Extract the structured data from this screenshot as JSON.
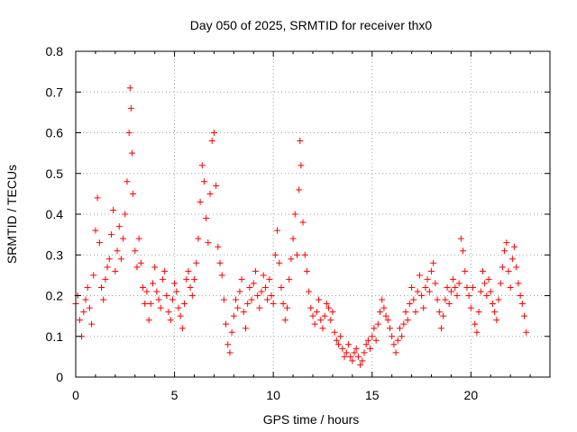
{
  "chart_data": {
    "type": "scatter",
    "title": "Day 050 of 2025, SRMTID for receiver thx0",
    "xlabel": "GPS time / hours",
    "ylabel": "SRMTID / TECUs",
    "xlim": [
      0,
      24
    ],
    "ylim": [
      0,
      0.8
    ],
    "xticks": [
      0,
      5,
      10,
      15,
      20
    ],
    "xtick_labels": [
      "0",
      "5",
      "10",
      "15",
      "20"
    ],
    "yticks": [
      0,
      0.1,
      0.2,
      0.3,
      0.4,
      0.5,
      0.6,
      0.7,
      0.8
    ],
    "ytick_labels": [
      "0",
      "0.1",
      "0.2",
      "0.3",
      "0.4",
      "0.5",
      "0.6",
      "0.7",
      "0.8"
    ],
    "grid": true,
    "marker": "plus",
    "marker_color": "#ff0000",
    "series": [
      {
        "name": "thx0",
        "points": [
          [
            0.0,
            0.18
          ],
          [
            0.1,
            0.2
          ],
          [
            0.2,
            0.14
          ],
          [
            0.3,
            0.1
          ],
          [
            0.4,
            0.16
          ],
          [
            0.5,
            0.19
          ],
          [
            0.6,
            0.22
          ],
          [
            0.7,
            0.17
          ],
          [
            0.8,
            0.13
          ],
          [
            0.9,
            0.25
          ],
          [
            1.0,
            0.36
          ],
          [
            1.1,
            0.44
          ],
          [
            1.2,
            0.33
          ],
          [
            1.3,
            0.22
          ],
          [
            1.4,
            0.19
          ],
          [
            1.5,
            0.24
          ],
          [
            1.6,
            0.27
          ],
          [
            1.7,
            0.29
          ],
          [
            1.8,
            0.35
          ],
          [
            1.9,
            0.41
          ],
          [
            2.0,
            0.26
          ],
          [
            2.1,
            0.31
          ],
          [
            2.2,
            0.37
          ],
          [
            2.3,
            0.29
          ],
          [
            2.4,
            0.34
          ],
          [
            2.5,
            0.4
          ],
          [
            2.6,
            0.48
          ],
          [
            2.7,
            0.6
          ],
          [
            2.75,
            0.71
          ],
          [
            2.8,
            0.66
          ],
          [
            2.85,
            0.55
          ],
          [
            2.9,
            0.45
          ],
          [
            3.0,
            0.31
          ],
          [
            3.1,
            0.27
          ],
          [
            3.2,
            0.34
          ],
          [
            3.3,
            0.28
          ],
          [
            3.4,
            0.22
          ],
          [
            3.5,
            0.18
          ],
          [
            3.6,
            0.21
          ],
          [
            3.7,
            0.14
          ],
          [
            3.8,
            0.18
          ],
          [
            3.9,
            0.23
          ],
          [
            4.0,
            0.27
          ],
          [
            4.1,
            0.21
          ],
          [
            4.2,
            0.19
          ],
          [
            4.3,
            0.17
          ],
          [
            4.4,
            0.24
          ],
          [
            4.5,
            0.26
          ],
          [
            4.6,
            0.2
          ],
          [
            4.7,
            0.16
          ],
          [
            4.8,
            0.14
          ],
          [
            4.9,
            0.19
          ],
          [
            5.0,
            0.23
          ],
          [
            5.1,
            0.21
          ],
          [
            5.2,
            0.17
          ],
          [
            5.3,
            0.15
          ],
          [
            5.4,
            0.12
          ],
          [
            5.5,
            0.18
          ],
          [
            5.6,
            0.24
          ],
          [
            5.7,
            0.26
          ],
          [
            5.8,
            0.22
          ],
          [
            5.9,
            0.2
          ],
          [
            6.0,
            0.24
          ],
          [
            6.1,
            0.28
          ],
          [
            6.2,
            0.34
          ],
          [
            6.3,
            0.43
          ],
          [
            6.4,
            0.52
          ],
          [
            6.5,
            0.48
          ],
          [
            6.6,
            0.39
          ],
          [
            6.7,
            0.33
          ],
          [
            6.8,
            0.45
          ],
          [
            6.9,
            0.58
          ],
          [
            7.0,
            0.6
          ],
          [
            7.1,
            0.47
          ],
          [
            7.2,
            0.32
          ],
          [
            7.3,
            0.28
          ],
          [
            7.4,
            0.25
          ],
          [
            7.5,
            0.19
          ],
          [
            7.6,
            0.13
          ],
          [
            7.7,
            0.08
          ],
          [
            7.8,
            0.06
          ],
          [
            7.9,
            0.11
          ],
          [
            8.0,
            0.15
          ],
          [
            8.1,
            0.19
          ],
          [
            8.2,
            0.17
          ],
          [
            8.3,
            0.21
          ],
          [
            8.4,
            0.24
          ],
          [
            8.5,
            0.16
          ],
          [
            8.6,
            0.12
          ],
          [
            8.7,
            0.18
          ],
          [
            8.8,
            0.22
          ],
          [
            8.9,
            0.19
          ],
          [
            9.0,
            0.23
          ],
          [
            9.1,
            0.26
          ],
          [
            9.2,
            0.2
          ],
          [
            9.3,
            0.17
          ],
          [
            9.4,
            0.21
          ],
          [
            9.5,
            0.25
          ],
          [
            9.6,
            0.22
          ],
          [
            9.7,
            0.19
          ],
          [
            9.8,
            0.24
          ],
          [
            9.9,
            0.2
          ],
          [
            10.0,
            0.18
          ],
          [
            10.1,
            0.3
          ],
          [
            10.2,
            0.36
          ],
          [
            10.3,
            0.28
          ],
          [
            10.4,
            0.22
          ],
          [
            10.5,
            0.18
          ],
          [
            10.6,
            0.14
          ],
          [
            10.7,
            0.17
          ],
          [
            10.8,
            0.24
          ],
          [
            10.9,
            0.29
          ],
          [
            11.0,
            0.34
          ],
          [
            11.1,
            0.4
          ],
          [
            11.2,
            0.3
          ],
          [
            11.3,
            0.46
          ],
          [
            11.35,
            0.58
          ],
          [
            11.4,
            0.52
          ],
          [
            11.5,
            0.38
          ],
          [
            11.6,
            0.3
          ],
          [
            11.7,
            0.26
          ],
          [
            11.8,
            0.21
          ],
          [
            11.9,
            0.17
          ],
          [
            12.0,
            0.15
          ],
          [
            12.1,
            0.13
          ],
          [
            12.2,
            0.16
          ],
          [
            12.3,
            0.19
          ],
          [
            12.4,
            0.14
          ],
          [
            12.5,
            0.12
          ],
          [
            12.6,
            0.15
          ],
          [
            12.7,
            0.18
          ],
          [
            12.8,
            0.17
          ],
          [
            12.9,
            0.14
          ],
          [
            13.0,
            0.16
          ],
          [
            13.1,
            0.11
          ],
          [
            13.2,
            0.09
          ],
          [
            13.3,
            0.08
          ],
          [
            13.4,
            0.1
          ],
          [
            13.5,
            0.07
          ],
          [
            13.6,
            0.05
          ],
          [
            13.7,
            0.06
          ],
          [
            13.8,
            0.08
          ],
          [
            13.9,
            0.05
          ],
          [
            14.0,
            0.04
          ],
          [
            14.1,
            0.06
          ],
          [
            14.2,
            0.07
          ],
          [
            14.3,
            0.05
          ],
          [
            14.4,
            0.03
          ],
          [
            14.5,
            0.04
          ],
          [
            14.6,
            0.06
          ],
          [
            14.7,
            0.08
          ],
          [
            14.8,
            0.09
          ],
          [
            14.9,
            0.07
          ],
          [
            15.0,
            0.1
          ],
          [
            15.1,
            0.12
          ],
          [
            15.2,
            0.09
          ],
          [
            15.3,
            0.13
          ],
          [
            15.4,
            0.16
          ],
          [
            15.5,
            0.19
          ],
          [
            15.6,
            0.17
          ],
          [
            15.7,
            0.15
          ],
          [
            15.8,
            0.14
          ],
          [
            15.9,
            0.12
          ],
          [
            16.0,
            0.1
          ],
          [
            16.1,
            0.08
          ],
          [
            16.2,
            0.06
          ],
          [
            16.3,
            0.09
          ],
          [
            16.4,
            0.12
          ],
          [
            16.5,
            0.1
          ],
          [
            16.6,
            0.13
          ],
          [
            16.7,
            0.16
          ],
          [
            16.8,
            0.14
          ],
          [
            16.9,
            0.18
          ],
          [
            17.0,
            0.22
          ],
          [
            17.1,
            0.19
          ],
          [
            17.2,
            0.16
          ],
          [
            17.3,
            0.21
          ],
          [
            17.4,
            0.25
          ],
          [
            17.5,
            0.2
          ],
          [
            17.6,
            0.17
          ],
          [
            17.7,
            0.22
          ],
          [
            17.8,
            0.24
          ],
          [
            17.9,
            0.21
          ],
          [
            18.0,
            0.26
          ],
          [
            18.1,
            0.28
          ],
          [
            18.2,
            0.23
          ],
          [
            18.3,
            0.19
          ],
          [
            18.4,
            0.16
          ],
          [
            18.5,
            0.12
          ],
          [
            18.6,
            0.15
          ],
          [
            18.7,
            0.19
          ],
          [
            18.8,
            0.22
          ],
          [
            18.9,
            0.18
          ],
          [
            19.0,
            0.21
          ],
          [
            19.1,
            0.24
          ],
          [
            19.2,
            0.22
          ],
          [
            19.3,
            0.2
          ],
          [
            19.4,
            0.23
          ],
          [
            19.5,
            0.34
          ],
          [
            19.6,
            0.31
          ],
          [
            19.7,
            0.26
          ],
          [
            19.8,
            0.22
          ],
          [
            19.9,
            0.2
          ],
          [
            20.0,
            0.17
          ],
          [
            20.1,
            0.22
          ],
          [
            20.2,
            0.13
          ],
          [
            20.3,
            0.11
          ],
          [
            20.4,
            0.16
          ],
          [
            20.5,
            0.21
          ],
          [
            20.6,
            0.26
          ],
          [
            20.7,
            0.23
          ],
          [
            20.8,
            0.2
          ],
          [
            20.9,
            0.24
          ],
          [
            21.0,
            0.21
          ],
          [
            21.1,
            0.18
          ],
          [
            21.2,
            0.16
          ],
          [
            21.3,
            0.14
          ],
          [
            21.4,
            0.19
          ],
          [
            21.5,
            0.23
          ],
          [
            21.6,
            0.27
          ],
          [
            21.7,
            0.31
          ],
          [
            21.8,
            0.33
          ],
          [
            21.9,
            0.26
          ],
          [
            22.0,
            0.22
          ],
          [
            22.1,
            0.29
          ],
          [
            22.2,
            0.32
          ],
          [
            22.3,
            0.27
          ],
          [
            22.4,
            0.23
          ],
          [
            22.5,
            0.2
          ],
          [
            22.6,
            0.18
          ],
          [
            22.7,
            0.15
          ],
          [
            22.8,
            0.11
          ]
        ]
      }
    ]
  }
}
